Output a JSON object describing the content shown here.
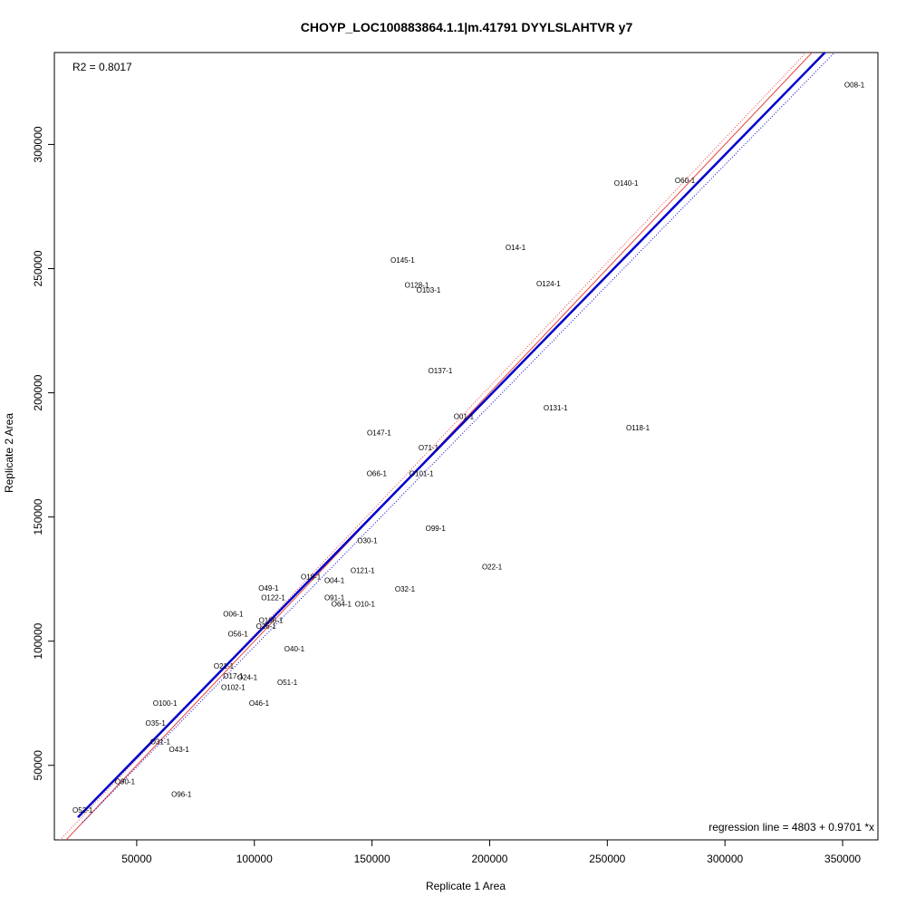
{
  "chart_data": {
    "type": "scatter",
    "title": "CHOYP_LOC100883864.1.1|m.41791 DYYLSLAHTVR y7",
    "xlabel": "Replicate 1 Area",
    "ylabel": "Replicate 2 Area",
    "xlim": [
      15000,
      365000
    ],
    "ylim": [
      20000,
      337000
    ],
    "x_ticks": [
      50000,
      100000,
      150000,
      200000,
      250000,
      300000,
      350000
    ],
    "y_ticks": [
      50000,
      100000,
      150000,
      200000,
      250000,
      300000
    ],
    "x_tick_labels": [
      "50000",
      "100000",
      "150000",
      "200000",
      "250000",
      "300000",
      "350000"
    ],
    "y_tick_labels": [
      "50000",
      "100000",
      "150000",
      "200000",
      "250000",
      "300000"
    ],
    "r2_text": "R2 = 0.8017",
    "regression_text": "regression line = 4803 + 0.9701 *x",
    "regression": {
      "intercept": 4803,
      "slope": 0.9701,
      "color": "#0000cc"
    },
    "identity_line_color": "#e8453c",
    "points": [
      {
        "label": "O08-1",
        "x": 355000,
        "y": 324000
      },
      {
        "label": "O60-1",
        "x": 283000,
        "y": 285500
      },
      {
        "label": "O140-1",
        "x": 258000,
        "y": 284500
      },
      {
        "label": "O14-1",
        "x": 211000,
        "y": 258500
      },
      {
        "label": "O145-1",
        "x": 163000,
        "y": 253500
      },
      {
        "label": "O124-1",
        "x": 225000,
        "y": 244000
      },
      {
        "label": "O128-1",
        "x": 169000,
        "y": 243500
      },
      {
        "label": "O103-1",
        "x": 174000,
        "y": 241500
      },
      {
        "label": "O137-1",
        "x": 179000,
        "y": 209000
      },
      {
        "label": "O131-1",
        "x": 228000,
        "y": 194000
      },
      {
        "label": "O01-1",
        "x": 189000,
        "y": 190500
      },
      {
        "label": "O118-1",
        "x": 263000,
        "y": 186000
      },
      {
        "label": "O147-1",
        "x": 153000,
        "y": 184000
      },
      {
        "label": "O71-1",
        "x": 174000,
        "y": 178000
      },
      {
        "label": "O66-1",
        "x": 152000,
        "y": 167500
      },
      {
        "label": "O101-1",
        "x": 171000,
        "y": 167500
      },
      {
        "label": "O99-1",
        "x": 177000,
        "y": 145500
      },
      {
        "label": "O30-1",
        "x": 148000,
        "y": 140500
      },
      {
        "label": "O22-1",
        "x": 201000,
        "y": 130000
      },
      {
        "label": "O121-1",
        "x": 146000,
        "y": 128500
      },
      {
        "label": "O18-1",
        "x": 124000,
        "y": 126000
      },
      {
        "label": "O04-1",
        "x": 134000,
        "y": 124500
      },
      {
        "label": "O49-1",
        "x": 106000,
        "y": 121500
      },
      {
        "label": "O32-1",
        "x": 164000,
        "y": 121000
      },
      {
        "label": "O122-1",
        "x": 108000,
        "y": 117500
      },
      {
        "label": "O91-1",
        "x": 134000,
        "y": 117500
      },
      {
        "label": "O64-1",
        "x": 137000,
        "y": 115000
      },
      {
        "label": "O10-1",
        "x": 147000,
        "y": 115000
      },
      {
        "label": "O06-1",
        "x": 91000,
        "y": 111000
      },
      {
        "label": "O106-1",
        "x": 107000,
        "y": 108500
      },
      {
        "label": "O26-1",
        "x": 105000,
        "y": 106000
      },
      {
        "label": "O56-1",
        "x": 93000,
        "y": 103000
      },
      {
        "label": "O40-1",
        "x": 117000,
        "y": 97000
      },
      {
        "label": "O21-1",
        "x": 87000,
        "y": 90000
      },
      {
        "label": "O17-1",
        "x": 91000,
        "y": 86000
      },
      {
        "label": "O24-1",
        "x": 97000,
        "y": 85500
      },
      {
        "label": "O51-1",
        "x": 114000,
        "y": 83500
      },
      {
        "label": "O102-1",
        "x": 91000,
        "y": 81500
      },
      {
        "label": "O100-1",
        "x": 62000,
        "y": 75000
      },
      {
        "label": "O46-1",
        "x": 102000,
        "y": 75000
      },
      {
        "label": "O35-1",
        "x": 58000,
        "y": 67000
      },
      {
        "label": "O31-1",
        "x": 60000,
        "y": 59500
      },
      {
        "label": "O43-1",
        "x": 68000,
        "y": 56500
      },
      {
        "label": "O90-1",
        "x": 45000,
        "y": 43500
      },
      {
        "label": "O96-1",
        "x": 69000,
        "y": 38500
      },
      {
        "label": "O52-1",
        "x": 27000,
        "y": 32000
      }
    ]
  }
}
